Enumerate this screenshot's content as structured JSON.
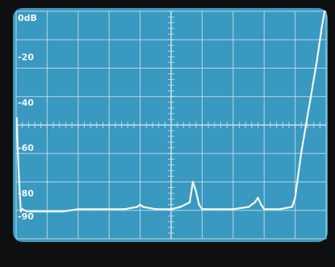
{
  "chart_data": {
    "type": "line",
    "title": "",
    "xlabel": "",
    "ylabel": "",
    "ytick_labels": [
      "0dB",
      "-20",
      "-40",
      "-60",
      "-80",
      "-90"
    ],
    "ytick_values": [
      0,
      -20,
      -40,
      -60,
      -80,
      -90
    ],
    "ylim": [
      -100,
      0
    ],
    "xlim": [
      0,
      10
    ],
    "grid": true,
    "colors": {
      "screen": "#3a99c0",
      "grid": "#cfe6ef",
      "trace": "#f4f7f6",
      "bezel": "#0d0f10"
    },
    "series": [
      {
        "x": [
          0.02,
          0.05,
          0.1,
          0.15,
          0.2,
          0.35,
          0.6,
          1.0,
          1.5,
          2.0,
          2.5,
          3.0,
          3.5,
          3.9,
          4.0,
          4.1,
          4.5,
          5.0,
          5.3,
          5.6,
          5.7,
          5.8,
          5.9,
          6.0,
          6.1,
          6.5,
          7.0,
          7.5,
          7.7,
          7.8,
          7.9,
          8.0,
          8.5,
          8.9,
          9.0,
          9.1,
          9.2,
          9.35,
          9.5,
          9.7,
          9.85,
          9.95
        ],
        "y": [
          -47,
          -60,
          -75,
          -88,
          -87,
          -88,
          -88,
          -88,
          -88,
          -87,
          -87,
          -87,
          -87,
          -86,
          -85,
          -86,
          -87,
          -87,
          -86,
          -84,
          -75,
          -79,
          -85,
          -87,
          -87,
          -87,
          -87,
          -86,
          -84,
          -82,
          -85,
          -87,
          -87,
          -86,
          -82,
          -72,
          -62,
          -50,
          -38,
          -22,
          -8,
          0
        ]
      }
    ]
  }
}
